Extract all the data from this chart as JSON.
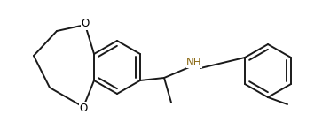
{
  "bg_color": "#ffffff",
  "bond_color": "#1a1a1a",
  "N_color": "#8B6914",
  "lw": 1.4,
  "dbo": 0.008,
  "fs": 8.5,
  "xlim": [
    0.0,
    1.0
  ],
  "ylim": [
    0.0,
    1.0
  ]
}
